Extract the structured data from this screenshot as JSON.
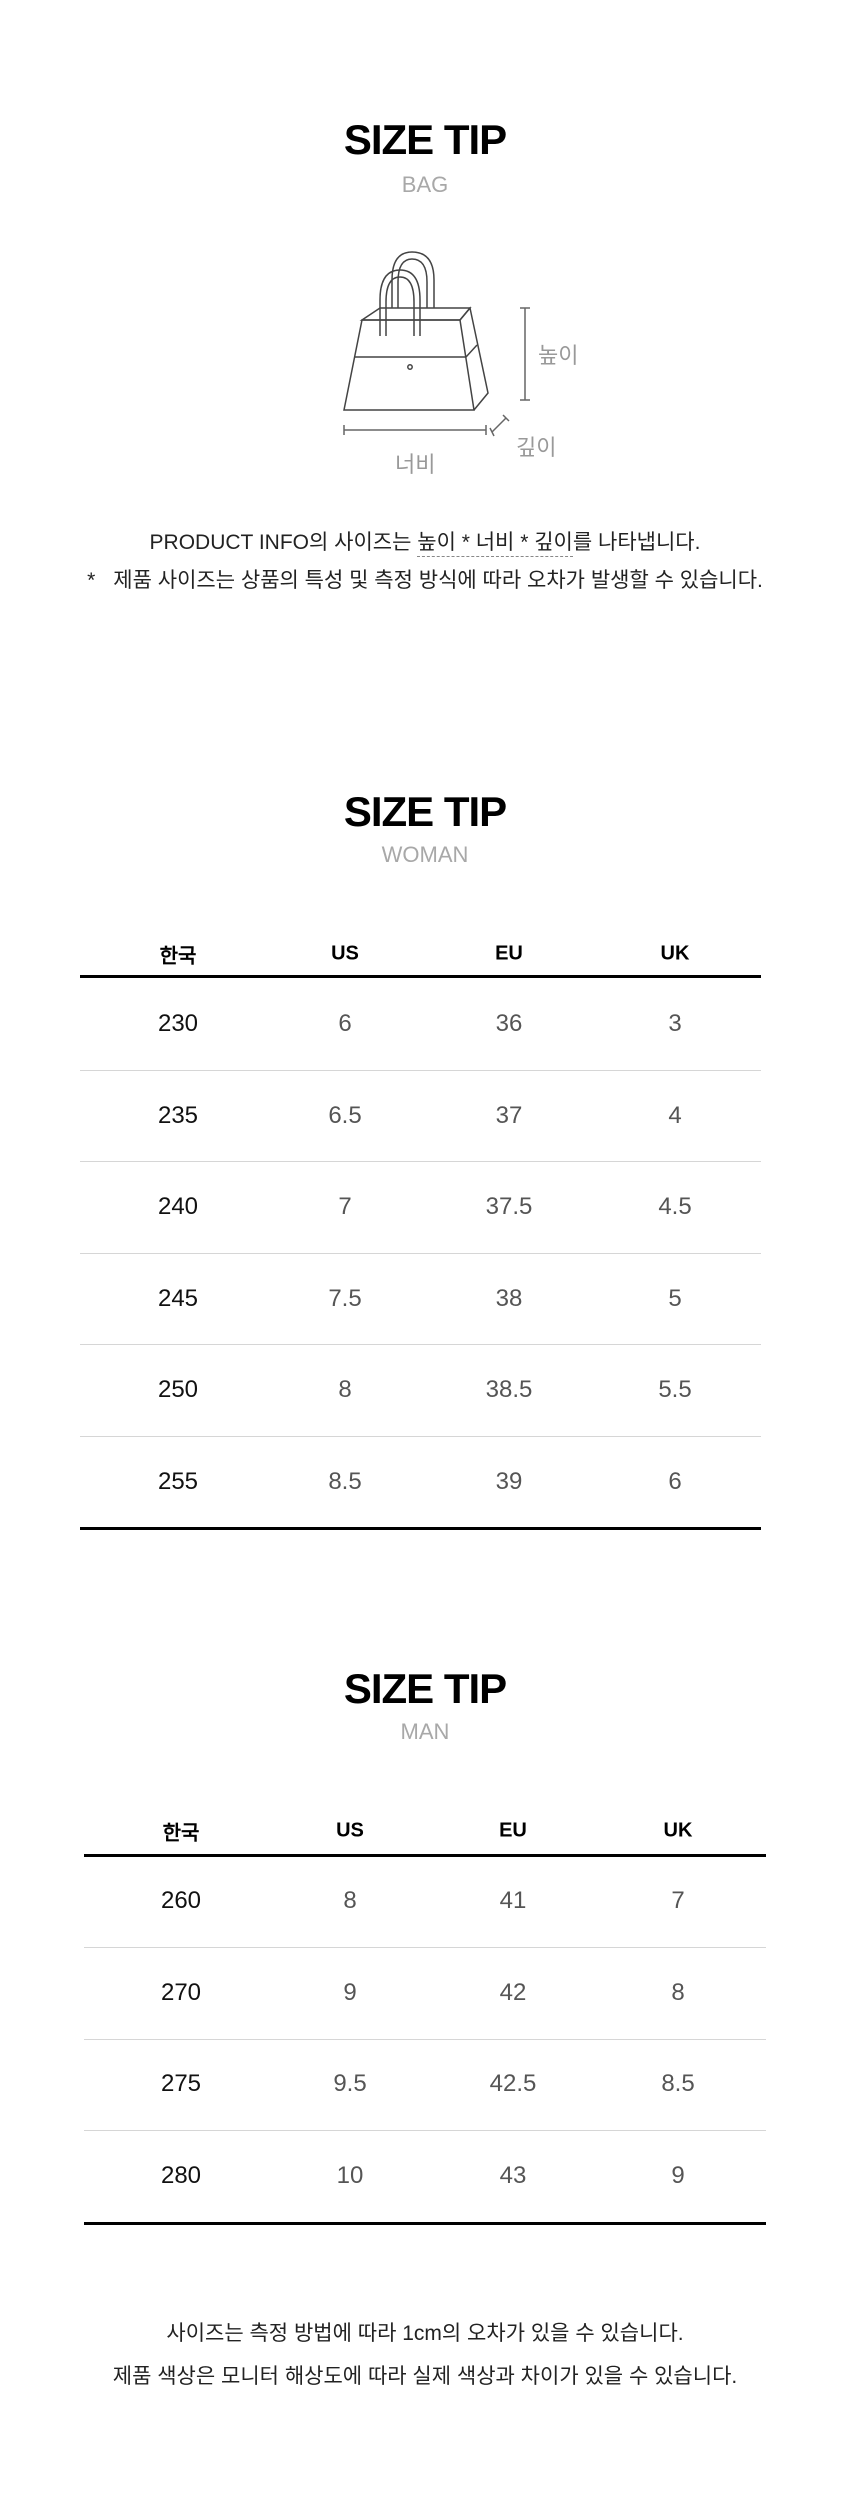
{
  "bag": {
    "title": "SIZE TIP",
    "subtitle": "BAG",
    "labels": {
      "height": "높이",
      "width": "너비",
      "depth": "깊이"
    },
    "note_prefix": "PRODUCT INFO의 사이즈는 ",
    "note_dims": "높이 * 너비 * 깊이",
    "note_suffix": "를 나타냅니다.",
    "note_asterisk": "*",
    "note2": "제품 사이즈는 상품의 특성 및 측정 방식에 따라 오차가 발생할 수 있습니다."
  },
  "woman": {
    "title": "SIZE TIP",
    "subtitle": "WOMAN",
    "headers": [
      "한국",
      "US",
      "EU",
      "UK"
    ],
    "rows": [
      [
        "230",
        "6",
        "36",
        "3"
      ],
      [
        "235",
        "6.5",
        "37",
        "4"
      ],
      [
        "240",
        "7",
        "37.5",
        "4.5"
      ],
      [
        "245",
        "7.5",
        "38",
        "5"
      ],
      [
        "250",
        "8",
        "38.5",
        "5.5"
      ],
      [
        "255",
        "8.5",
        "39",
        "6"
      ]
    ]
  },
  "man": {
    "title": "SIZE TIP",
    "subtitle": "MAN",
    "headers": [
      "한국",
      "US",
      "EU",
      "UK"
    ],
    "rows": [
      [
        "260",
        "8",
        "41",
        "7"
      ],
      [
        "270",
        "9",
        "42",
        "8"
      ],
      [
        "275",
        "9.5",
        "42.5",
        "8.5"
      ],
      [
        "280",
        "10",
        "43",
        "9"
      ]
    ]
  },
  "footer": {
    "line1": "사이즈는 측정 방법에 따라 1cm의 오차가 있을 수 있습니다.",
    "line2": "제품 색상은 모니터 해상도에 따라 실제 색상과 차이가 있을 수 있습니다."
  }
}
